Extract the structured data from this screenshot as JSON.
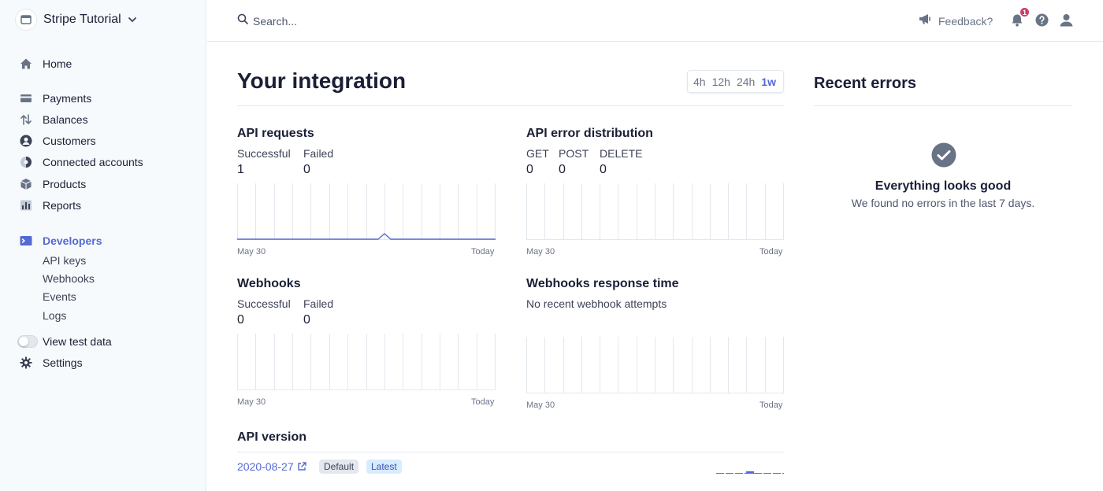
{
  "account": {
    "name": "Stripe Tutorial"
  },
  "sidebar": {
    "items": [
      {
        "label": "Home",
        "icon": "home-icon"
      },
      {
        "label": "Payments",
        "icon": "payments-icon"
      },
      {
        "label": "Balances",
        "icon": "balances-icon"
      },
      {
        "label": "Customers",
        "icon": "customers-icon"
      },
      {
        "label": "Connected accounts",
        "icon": "connected-accounts-icon"
      },
      {
        "label": "Products",
        "icon": "products-icon"
      },
      {
        "label": "Reports",
        "icon": "reports-icon"
      },
      {
        "label": "Developers",
        "icon": "developers-icon",
        "active": true
      },
      {
        "label": "View test data",
        "icon": "toggle"
      },
      {
        "label": "Settings",
        "icon": "gear-icon"
      }
    ],
    "developer_subitems": [
      "API keys",
      "Webhooks",
      "Events",
      "Logs"
    ]
  },
  "topbar": {
    "search_placeholder": "Search...",
    "feedback_label": "Feedback?",
    "notification_count": "1"
  },
  "main": {
    "title": "Your integration",
    "ranges": [
      "4h",
      "12h",
      "24h",
      "1w"
    ],
    "selected_range": "1w",
    "api_requests": {
      "title": "API requests",
      "labels": [
        "Successful",
        "Failed"
      ],
      "values": [
        "1",
        "0"
      ],
      "x_start": "May 30",
      "x_end": "Today"
    },
    "api_errors": {
      "title": "API error distribution",
      "labels": [
        "GET",
        "POST",
        "DELETE"
      ],
      "values": [
        "0",
        "0",
        "0"
      ],
      "x_start": "May 30",
      "x_end": "Today"
    },
    "webhooks": {
      "title": "Webhooks",
      "labels": [
        "Successful",
        "Failed"
      ],
      "values": [
        "0",
        "0"
      ],
      "x_start": "May 30",
      "x_end": "Today"
    },
    "webhooks_response": {
      "title": "Webhooks response time",
      "message": "No recent webhook attempts",
      "x_start": "May 30",
      "x_end": "Today"
    },
    "api_version": {
      "title": "API version",
      "version": "2020-08-27",
      "tags": [
        "Default",
        "Latest"
      ]
    }
  },
  "recent_errors": {
    "title": "Recent errors",
    "status_title": "Everything looks good",
    "status_message": "We found no errors in the last 7 days."
  },
  "colors": {
    "accent": "#5469d4",
    "sidebar_bg": "#f7fafc",
    "border": "#e3e8ee",
    "badge": "#cd3d64",
    "ok_icon": "#697386"
  }
}
